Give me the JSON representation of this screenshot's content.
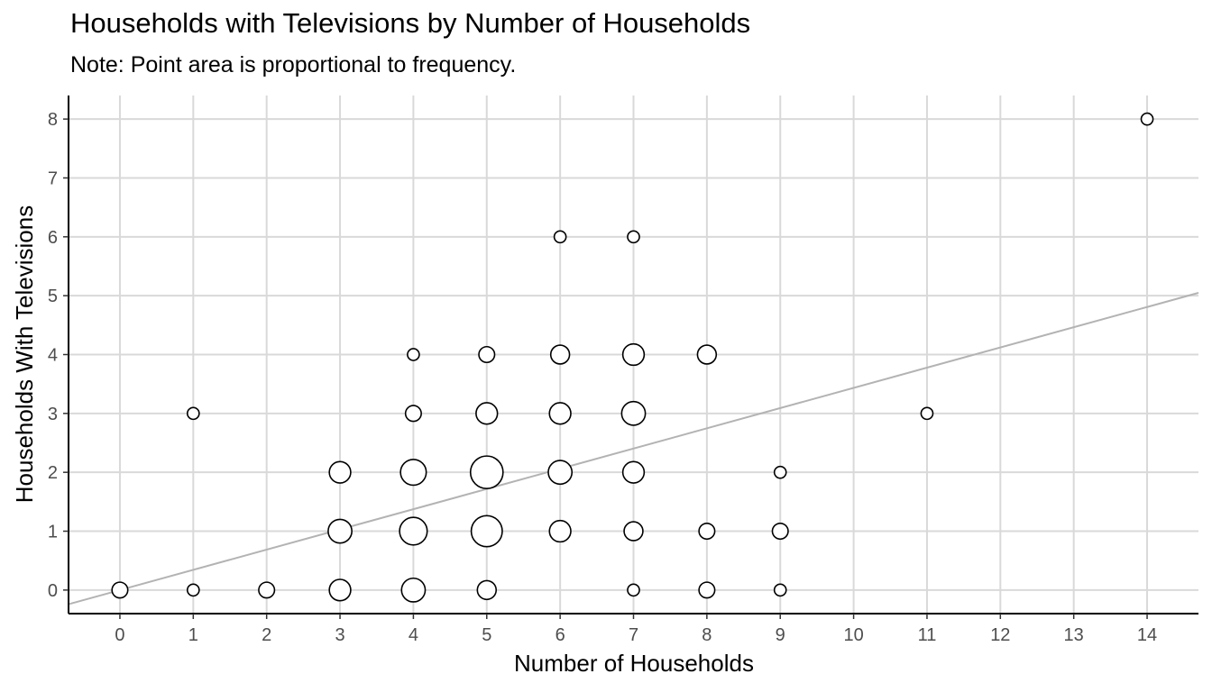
{
  "chart_data": {
    "type": "scatter",
    "title": "Households with Televisions by Number of Households",
    "subtitle": "Note: Point area is proportional to frequency.",
    "xlabel": "Number of Households",
    "ylabel": "Households With Televisions",
    "xlim": [
      -0.7,
      14.7
    ],
    "ylim": [
      -0.4,
      8.4
    ],
    "xticks": [
      0,
      1,
      2,
      3,
      4,
      5,
      6,
      7,
      8,
      9,
      10,
      11,
      12,
      13,
      14
    ],
    "yticks": [
      0,
      1,
      2,
      3,
      4,
      5,
      6,
      7,
      8
    ],
    "grid": true,
    "size_encodes": "frequency",
    "points": [
      {
        "x": 0,
        "y": 0,
        "n": 2
      },
      {
        "x": 1,
        "y": 0,
        "n": 1
      },
      {
        "x": 2,
        "y": 0,
        "n": 2
      },
      {
        "x": 3,
        "y": 0,
        "n": 4
      },
      {
        "x": 4,
        "y": 0,
        "n": 5
      },
      {
        "x": 5,
        "y": 0,
        "n": 3
      },
      {
        "x": 7,
        "y": 0,
        "n": 1
      },
      {
        "x": 8,
        "y": 0,
        "n": 2
      },
      {
        "x": 9,
        "y": 0,
        "n": 1
      },
      {
        "x": 3,
        "y": 1,
        "n": 5
      },
      {
        "x": 4,
        "y": 1,
        "n": 7
      },
      {
        "x": 5,
        "y": 1,
        "n": 9
      },
      {
        "x": 6,
        "y": 1,
        "n": 4
      },
      {
        "x": 7,
        "y": 1,
        "n": 3
      },
      {
        "x": 8,
        "y": 1,
        "n": 2
      },
      {
        "x": 9,
        "y": 1,
        "n": 2
      },
      {
        "x": 3,
        "y": 2,
        "n": 4
      },
      {
        "x": 4,
        "y": 2,
        "n": 6
      },
      {
        "x": 5,
        "y": 2,
        "n": 10
      },
      {
        "x": 6,
        "y": 2,
        "n": 5
      },
      {
        "x": 7,
        "y": 2,
        "n": 4
      },
      {
        "x": 9,
        "y": 2,
        "n": 1
      },
      {
        "x": 1,
        "y": 3,
        "n": 1
      },
      {
        "x": 4,
        "y": 3,
        "n": 2
      },
      {
        "x": 5,
        "y": 3,
        "n": 4
      },
      {
        "x": 6,
        "y": 3,
        "n": 4
      },
      {
        "x": 7,
        "y": 3,
        "n": 5
      },
      {
        "x": 11,
        "y": 3,
        "n": 1
      },
      {
        "x": 4,
        "y": 4,
        "n": 1
      },
      {
        "x": 5,
        "y": 4,
        "n": 2
      },
      {
        "x": 6,
        "y": 4,
        "n": 3
      },
      {
        "x": 7,
        "y": 4,
        "n": 4
      },
      {
        "x": 8,
        "y": 4,
        "n": 3
      },
      {
        "x": 6,
        "y": 6,
        "n": 1
      },
      {
        "x": 7,
        "y": 6,
        "n": 1
      },
      {
        "x": 14,
        "y": 8,
        "n": 1
      }
    ],
    "trend_line": {
      "intercept": 0,
      "slope": 0.3434
    },
    "colors": {
      "grid": "#d9d9d9",
      "axis": "#000000",
      "point_stroke": "#000000",
      "point_fill": "#ffffff",
      "trend": "#b3b3b3"
    }
  }
}
